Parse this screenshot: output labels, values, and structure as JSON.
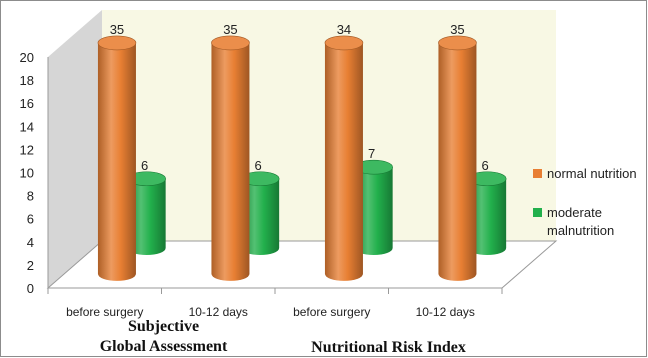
{
  "chart_data": {
    "type": "bar",
    "categories": [
      "before surgery",
      "10-12 days",
      "before surgery",
      "10-12 days"
    ],
    "groups": [
      {
        "label_lines": [
          "Subjective",
          "Global Assessment"
        ]
      },
      {
        "label_lines": [
          "Nutritional Risk Index"
        ]
      }
    ],
    "series": [
      {
        "name": "normal nutrition",
        "values": [
          35,
          35,
          34,
          35
        ],
        "color": "#e87f33"
      },
      {
        "name": "moderate malnutrition",
        "values": [
          6,
          6,
          7,
          6
        ],
        "color": "#22b04c"
      }
    ],
    "legend_lines": [
      [
        "normal nutrition"
      ],
      [
        "moderate",
        "malnutrition"
      ]
    ],
    "yticks": [
      "0",
      "2",
      "4",
      "6",
      "8",
      "10",
      "12",
      "14",
      "16",
      "18",
      "20"
    ],
    "ylim": [
      0,
      20
    ],
    "legend": "right"
  }
}
